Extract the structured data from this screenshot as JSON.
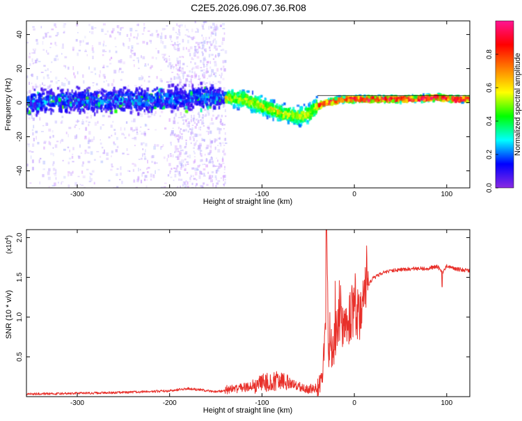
{
  "title": "C2E5.2026.096.07.36.R08",
  "chart_data": [
    {
      "type": "heatmap",
      "xlabel": "Height of straight line (km)",
      "ylabel": "Frequency (Hz)",
      "xlim": [
        -355,
        125
      ],
      "ylim": [
        -50,
        48
      ],
      "xticks": [
        -300,
        -200,
        -100,
        0,
        100
      ],
      "yticks": [
        -40,
        -20,
        0,
        20,
        40
      ],
      "grid": false,
      "ridge": {
        "x": [
          -355,
          -300,
          -250,
          -200,
          -170,
          -150,
          -120,
          -100,
          -80,
          -60,
          -50,
          -40,
          -30,
          -20,
          -10,
          0,
          20,
          60,
          90,
          110,
          125
        ],
        "y": [
          0,
          1,
          1,
          2,
          3,
          3,
          2,
          -2,
          -6,
          -8,
          -7,
          -2,
          0,
          1,
          2,
          2,
          2,
          2,
          3,
          2,
          2
        ]
      },
      "colorbar": {
        "label": "Normalized spectral amplitude",
        "ticks": [
          "0.0",
          "0.2",
          "0.4",
          "0.6",
          "0.8"
        ],
        "range": [
          0,
          1
        ],
        "colors": [
          "#8a2be2",
          "#0000ff",
          "#00ffff",
          "#00ff00",
          "#ffff00",
          "#ff8000",
          "#ff0000",
          "#ff1493"
        ]
      }
    },
    {
      "type": "line",
      "xlabel": "Height of straight line (km)",
      "ylabel": "SNR (10 * v/v)",
      "y_multiplier": "(x10",
      "y_multiplier_exp": "4",
      "y_multiplier_close": ")",
      "xlim": [
        -355,
        125
      ],
      "ylim": [
        0,
        2.1
      ],
      "xticks": [
        -300,
        -200,
        -100,
        0,
        100
      ],
      "yticks": [
        "0.5",
        "1.0",
        "1.5",
        "2.0"
      ],
      "series": [
        {
          "color": "#e8302a",
          "x": [
            -355,
            -300,
            -250,
            -200,
            -180,
            -150,
            -120,
            -100,
            -80,
            -60,
            -50,
            -40,
            -35,
            -31,
            -30,
            -28,
            -25,
            -20,
            -15,
            -10,
            -5,
            0,
            5,
            10,
            15,
            20,
            30,
            40,
            60,
            80,
            90,
            95,
            100,
            110,
            125
          ],
          "y": [
            0.03,
            0.04,
            0.05,
            0.07,
            0.1,
            0.06,
            0.1,
            0.15,
            0.18,
            0.12,
            0.08,
            0.1,
            0.15,
            0.9,
            2.1,
            0.5,
            0.6,
            0.7,
            0.9,
            0.8,
            0.9,
            1.0,
            0.9,
            1.2,
            1.4,
            1.48,
            1.55,
            1.58,
            1.6,
            1.61,
            1.63,
            1.55,
            1.64,
            1.6,
            1.58
          ]
        }
      ]
    }
  ]
}
